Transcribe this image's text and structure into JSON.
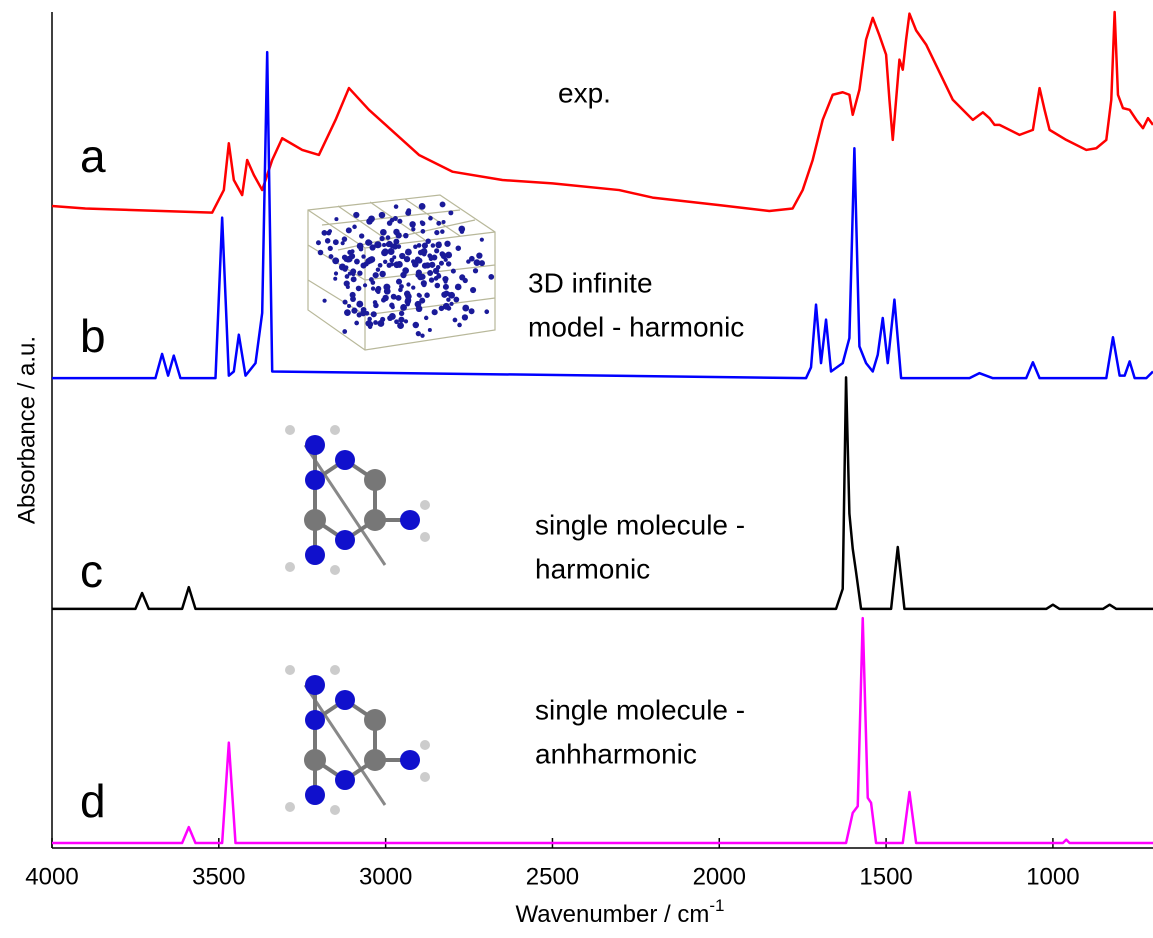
{
  "chart_data": {
    "type": "line",
    "xlabel": {
      "text": "Wavenumber / cm",
      "superscript": "-1"
    },
    "ylabel": "Absorbance / a.u.",
    "xlim": [
      4000,
      700
    ],
    "ylim": [
      0,
      100
    ],
    "xticks": [
      4000,
      3500,
      3000,
      2500,
      2000,
      1500,
      1000
    ],
    "series": [
      {
        "name": "a",
        "color": "#ff0000",
        "annotation": [
          "exp."
        ],
        "x": [
          4000,
          3900,
          3520,
          3485,
          3470,
          3455,
          3430,
          3415,
          3395,
          3370,
          3340,
          3310,
          3250,
          3200,
          3150,
          3110,
          3050,
          3000,
          2900,
          2800,
          2650,
          2500,
          2300,
          2200,
          2000,
          1850,
          1780,
          1750,
          1720,
          1690,
          1660,
          1630,
          1610,
          1600,
          1580,
          1560,
          1540,
          1520,
          1500,
          1490,
          1480,
          1470,
          1460,
          1450,
          1440,
          1430,
          1410,
          1380,
          1300,
          1240,
          1210,
          1190,
          1175,
          1160,
          1100,
          1060,
          1040,
          1025,
          1010,
          960,
          900,
          870,
          840,
          825,
          815,
          805,
          790,
          770,
          750,
          730,
          715,
          700
        ],
        "values": [
          76.8,
          76.5,
          76.0,
          78.7,
          84.3,
          79.9,
          78.1,
          82.3,
          80.5,
          78.7,
          82.3,
          84.9,
          83.5,
          82.9,
          87.1,
          90.9,
          88.3,
          86.5,
          82.9,
          80.9,
          79.9,
          79.5,
          78.7,
          77.8,
          76.9,
          76.2,
          76.5,
          78.7,
          82.3,
          87.1,
          90.1,
          90.4,
          90.1,
          87.7,
          90.7,
          96.7,
          99.3,
          97.2,
          94.9,
          89.5,
          84.7,
          89.5,
          94.3,
          93.1,
          96.7,
          99.8,
          97.8,
          96.1,
          89.5,
          87.1,
          88.0,
          87.3,
          86.5,
          86.5,
          85.3,
          85.9,
          90.9,
          88.3,
          85.9,
          84.7,
          83.5,
          83.7,
          84.7,
          89.5,
          100,
          90.1,
          88.5,
          88.3,
          87.1,
          86.1,
          87.3,
          86.5
        ]
      },
      {
        "name": "b",
        "color": "#0000ff",
        "annotation": [
          "3D infinite",
          "model - harmonic"
        ],
        "x": [
          4000,
          3690,
          3670,
          3652,
          3635,
          3615,
          3510,
          3490,
          3470,
          3455,
          3440,
          3420,
          3390,
          3370,
          3355,
          3340,
          1740,
          1725,
          1710,
          1695,
          1680,
          1665,
          1630,
          1610,
          1595,
          1580,
          1560,
          1540,
          1525,
          1510,
          1495,
          1475,
          1455,
          1250,
          1220,
          1200,
          1180,
          1080,
          1060,
          1040,
          840,
          820,
          800,
          785,
          770,
          755,
          720,
          700
        ],
        "values": [
          56.2,
          56.2,
          59.1,
          56.5,
          58.9,
          56.2,
          56.2,
          75.4,
          56.5,
          57,
          61.4,
          56.5,
          58,
          64,
          95.2,
          57,
          56.2,
          57.5,
          65,
          58,
          63.2,
          57,
          58,
          61,
          83.7,
          60,
          58,
          57,
          59,
          63.4,
          58,
          65.6,
          56.2,
          56.2,
          56.8,
          56.5,
          56.2,
          56.2,
          58.1,
          56.2,
          56.2,
          61.1,
          56.5,
          56.5,
          58.2,
          56.2,
          56.2,
          57
        ]
      },
      {
        "name": "c",
        "color": "#000000",
        "annotation": [
          "single molecule -",
          "harmonic"
        ],
        "x": [
          4000,
          3750,
          3730,
          3710,
          3610,
          3590,
          3570,
          1650,
          1630,
          1620,
          1610,
          1600,
          1590,
          1575,
          1485,
          1465,
          1445,
          1020,
          1000,
          980,
          850,
          830,
          810,
          700
        ],
        "values": [
          28.6,
          28.6,
          30.5,
          28.6,
          28.6,
          31.2,
          28.6,
          28.6,
          31,
          56.3,
          40,
          35.8,
          33,
          28.6,
          28.6,
          36.0,
          28.6,
          28.6,
          29.1,
          28.6,
          28.6,
          29.1,
          28.6,
          28.6
        ]
      },
      {
        "name": "d",
        "color": "#ff00ff",
        "annotation": [
          "single molecule -",
          "anhharmonic"
        ],
        "x": [
          4000,
          3610,
          3590,
          3570,
          3490,
          3470,
          3450,
          1620,
          1600,
          1585,
          1570,
          1555,
          1545,
          1530,
          1450,
          1430,
          1410,
          970,
          960,
          950,
          700
        ],
        "values": [
          0.6,
          0.6,
          2.5,
          0.6,
          0.6,
          12.6,
          0.6,
          0.6,
          4.2,
          5,
          27.5,
          6,
          5.4,
          0.6,
          0.6,
          6.7,
          0.6,
          0.6,
          1.0,
          0.6,
          0.6
        ]
      }
    ]
  }
}
